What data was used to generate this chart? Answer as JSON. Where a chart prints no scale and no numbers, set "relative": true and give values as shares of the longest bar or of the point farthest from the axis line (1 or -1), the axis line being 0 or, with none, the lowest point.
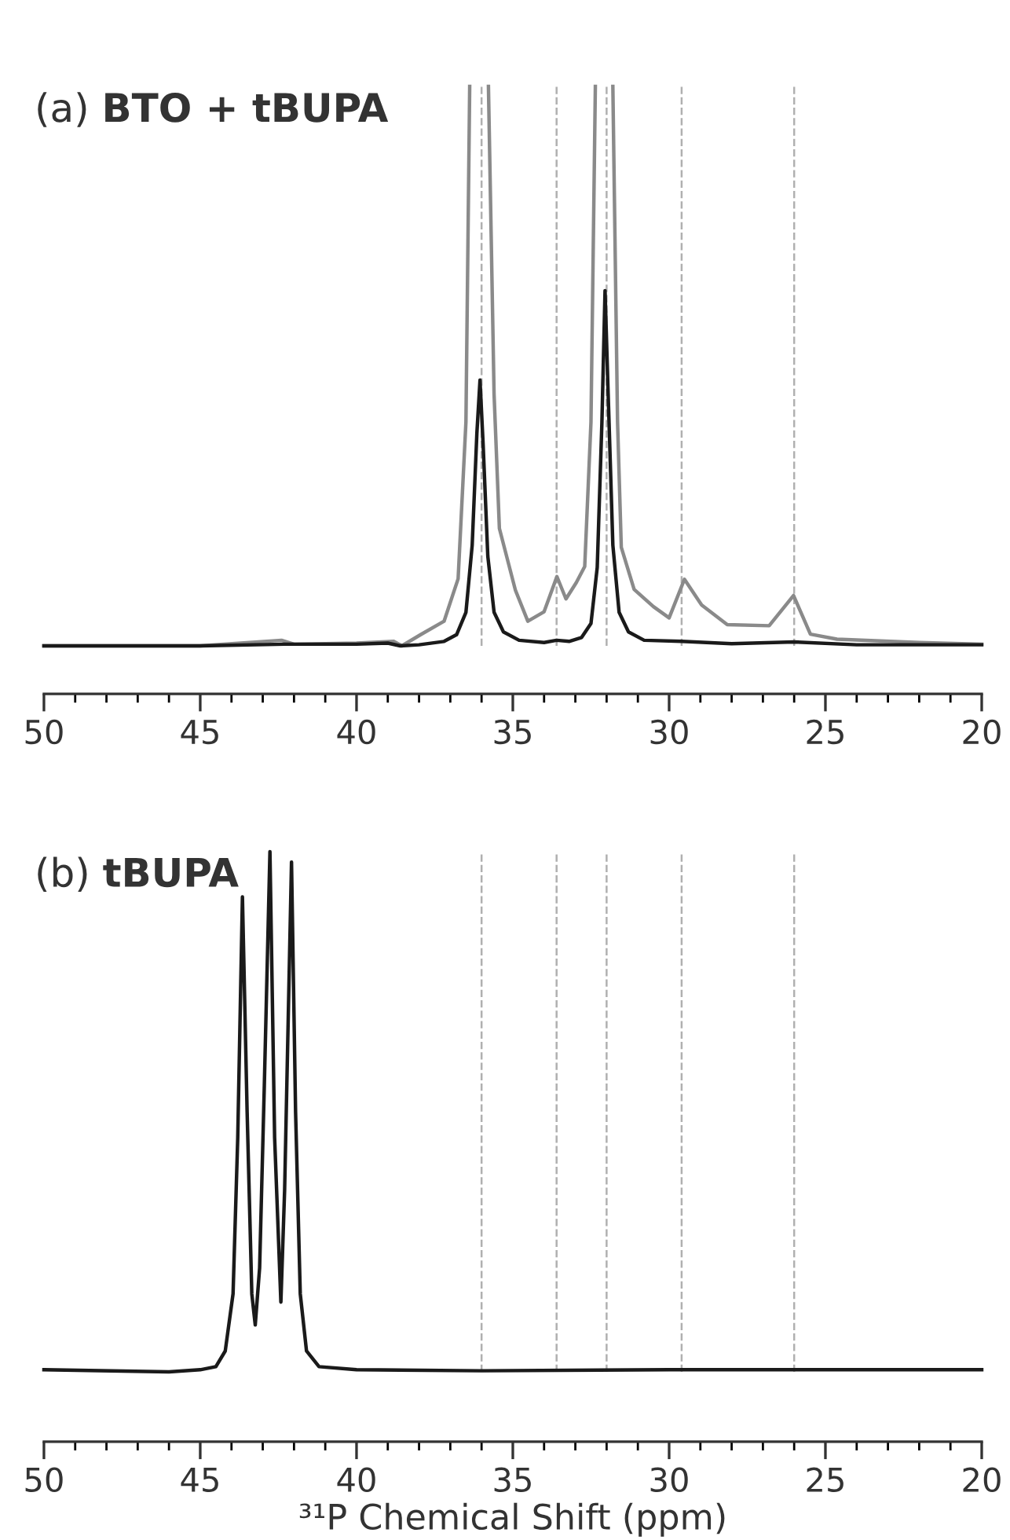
{
  "chart_data": [
    {
      "type": "line",
      "title": "(a) BTO + tBUPA",
      "relative": true,
      "xlim": [
        50,
        20
      ],
      "xticks": [
        50,
        45,
        40,
        35,
        30,
        25,
        20
      ],
      "tick_labels": "x",
      "marker": "none",
      "line_style": "solid",
      "grid": false,
      "series": [
        {
          "color": "#8a8a8a",
          "x": [
            50,
            45,
            42.4,
            42,
            40,
            38.8,
            38.55,
            37.95,
            37.2,
            36.75,
            36.5,
            36.38,
            36.08,
            35.78,
            35.6,
            35.43,
            34.92,
            34.52,
            34.0,
            33.59,
            33.3,
            32.97,
            32.7,
            32.5,
            32.36,
            32.08,
            31.8,
            31.65,
            31.53,
            31.12,
            30.5,
            30.0,
            29.51,
            28.96,
            28.14,
            26.8,
            26.02,
            25.48,
            24.63,
            22,
            20
          ],
          "values": [
            0,
            0,
            0.01,
            0.003,
            0.005,
            0.008,
            0,
            0.02,
            0.044,
            0.12,
            0.4,
            1,
            null,
            1,
            0.45,
            0.21,
            0.1,
            0.044,
            0.061,
            0.124,
            0.084,
            0.113,
            0.142,
            0.4,
            1,
            null,
            1,
            0.4,
            0.176,
            0.101,
            0.07,
            0.05,
            0.119,
            0.073,
            0.038,
            0.036,
            0.09,
            0.021,
            0.012,
            0.006,
            0.003
          ]
        },
        {
          "color": "#1a1a1a",
          "x": [
            50,
            45,
            42.3,
            40,
            39,
            38.6,
            38,
            37.2,
            36.8,
            36.5,
            36.3,
            36.15,
            36.05,
            35.95,
            35.8,
            35.6,
            35.3,
            34.8,
            34,
            33.6,
            33.2,
            32.8,
            32.5,
            32.3,
            32.15,
            32.05,
            31.95,
            31.8,
            31.6,
            31.3,
            30.8,
            29.6,
            28,
            26,
            24,
            20
          ],
          "values": [
            0,
            0,
            0.003,
            0.003,
            0.005,
            0,
            0.002,
            0.008,
            0.02,
            0.06,
            0.18,
            0.38,
            0.475,
            0.36,
            0.16,
            0.06,
            0.025,
            0.01,
            0.006,
            0.01,
            0.008,
            0.015,
            0.04,
            0.14,
            0.4,
            0.635,
            0.45,
            0.18,
            0.06,
            0.025,
            0.01,
            0.008,
            0.004,
            0.007,
            0.002,
            0.002
          ]
        }
      ],
      "ref_lines": [
        {
          "axis": "x",
          "value": 36,
          "color": "#b0b0b0",
          "line_style": "dashed"
        },
        {
          "axis": "x",
          "value": 33.6,
          "color": "#b0b0b0",
          "line_style": "dashed"
        },
        {
          "axis": "x",
          "value": 32,
          "color": "#b0b0b0",
          "line_style": "dashed"
        },
        {
          "axis": "x",
          "value": 29.6,
          "color": "#b0b0b0",
          "line_style": "dashed"
        },
        {
          "axis": "x",
          "value": 26,
          "color": "#b0b0b0",
          "line_style": "dashed"
        }
      ]
    },
    {
      "type": "line",
      "title": "(b) tBUPA",
      "xlabel": "³¹P Chemical Shift (ppm)",
      "relative": true,
      "xlim": [
        50,
        20
      ],
      "xticks": [
        50,
        45,
        40,
        35,
        30,
        25,
        20
      ],
      "tick_labels": "x",
      "marker": "none",
      "line_style": "solid",
      "grid": false,
      "series": [
        {
          "color": "#1a1a1a",
          "x": [
            50,
            46,
            45,
            44.5,
            44.2,
            43.95,
            43.8,
            43.65,
            43.5,
            43.35,
            43.24,
            43.1,
            42.95,
            42.77,
            42.62,
            42.42,
            42.3,
            42.08,
            41.95,
            41.8,
            41.6,
            41.2,
            40,
            36,
            30,
            20
          ],
          "values": [
            0.004,
            0,
            0.004,
            0.01,
            0.04,
            0.15,
            0.45,
            0.913,
            0.5,
            0.15,
            0.09,
            0.2,
            0.55,
            1,
            0.45,
            0.134,
            0.35,
            0.98,
            0.5,
            0.15,
            0.04,
            0.01,
            0.004,
            0.002,
            0.004,
            0.004
          ]
        }
      ],
      "ref_lines": [
        {
          "axis": "x",
          "value": 36,
          "color": "#b0b0b0",
          "line_style": "dashed"
        },
        {
          "axis": "x",
          "value": 33.6,
          "color": "#b0b0b0",
          "line_style": "dashed"
        },
        {
          "axis": "x",
          "value": 32,
          "color": "#b0b0b0",
          "line_style": "dashed"
        },
        {
          "axis": "x",
          "value": 29.6,
          "color": "#b0b0b0",
          "line_style": "dashed"
        },
        {
          "axis": "x",
          "value": 26,
          "color": "#b0b0b0",
          "line_style": "dashed"
        }
      ]
    }
  ]
}
